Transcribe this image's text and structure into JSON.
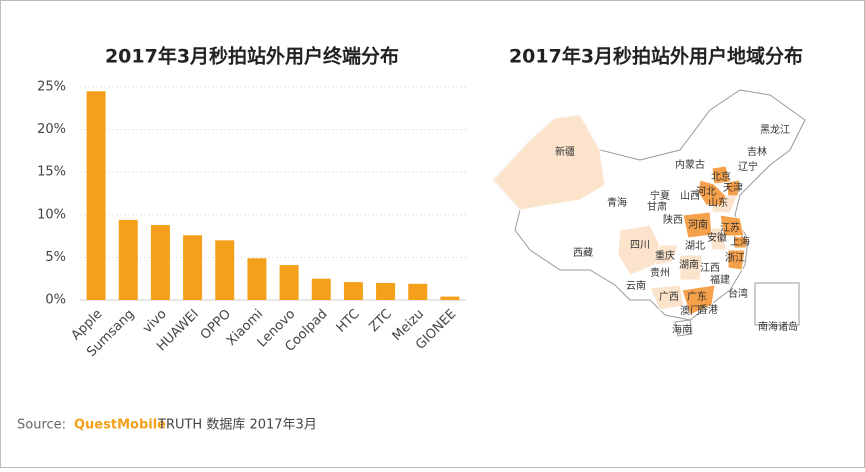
{
  "chart_data": [
    {
      "type": "bar",
      "title": "2017年3月秒拍站外用户终端分布",
      "categories": [
        "Apple",
        "Sumsang",
        "vivo",
        "HUAWEI",
        "OPPO",
        "Xiaomi",
        "Lenovo",
        "Coolpad",
        "HTC",
        "ZTC",
        "Meizu",
        "GIONEE"
      ],
      "values": [
        24.5,
        9.4,
        8.8,
        7.6,
        7.0,
        4.9,
        4.1,
        2.5,
        2.1,
        2.0,
        1.9,
        0.4
      ],
      "color": "#f5a01a",
      "ylim": [
        0,
        25
      ],
      "yticks": [
        {
          "value": 0,
          "label": "0%"
        },
        {
          "value": 5,
          "label": "5%"
        },
        {
          "value": 10,
          "label": "10%"
        },
        {
          "value": 15,
          "label": "15%"
        },
        {
          "value": 20,
          "label": "20%"
        },
        {
          "value": 25,
          "label": "25%"
        }
      ],
      "grid": true
    },
    {
      "type": "map",
      "title": "2017年3月秒拍站外用户地域分布",
      "regions": [
        {
          "name": "新疆",
          "color": "#fbe3cc"
        },
        {
          "name": "西藏",
          "color": "#ffffff"
        },
        {
          "name": "青海",
          "color": "#ffffff"
        },
        {
          "name": "甘肃",
          "color": "#ffffff"
        },
        {
          "name": "内蒙古",
          "color": "#ffffff"
        },
        {
          "name": "黑龙江",
          "color": "#ffffff"
        },
        {
          "name": "吉林",
          "color": "#ffffff"
        },
        {
          "name": "辽宁",
          "color": "#ffffff"
        },
        {
          "name": "北京",
          "color": "#f5a04a"
        },
        {
          "name": "天津",
          "color": "#f5a04a"
        },
        {
          "name": "河北",
          "color": "#f5a04a"
        },
        {
          "name": "宁夏",
          "color": "#ffffff"
        },
        {
          "name": "山西",
          "color": "#ffffff"
        },
        {
          "name": "山东",
          "color": "#fbe3cc"
        },
        {
          "name": "陕西",
          "color": "#ffffff"
        },
        {
          "name": "河南",
          "color": "#f5a04a"
        },
        {
          "name": "江苏",
          "color": "#f5a04a"
        },
        {
          "name": "安徽",
          "color": "#fbe3cc"
        },
        {
          "name": "上海",
          "color": "#f5a04a"
        },
        {
          "name": "四川",
          "color": "#fbe3cc"
        },
        {
          "name": "重庆",
          "color": "#fbe3cc"
        },
        {
          "name": "湖北",
          "color": "#ffffff"
        },
        {
          "name": "浙江",
          "color": "#f5a04a"
        },
        {
          "name": "湖南",
          "color": "#fbe3cc"
        },
        {
          "name": "江西",
          "color": "#ffffff"
        },
        {
          "name": "贵州",
          "color": "#ffffff"
        },
        {
          "name": "福建",
          "color": "#ffffff"
        },
        {
          "name": "云南",
          "color": "#ffffff"
        },
        {
          "name": "广西",
          "color": "#fbe3cc"
        },
        {
          "name": "广东",
          "color": "#f5a04a"
        },
        {
          "name": "台湾",
          "color": "#ffffff"
        },
        {
          "name": "澳门",
          "color": "#ffffff"
        },
        {
          "name": "香港",
          "color": "#ffffff"
        },
        {
          "name": "海南",
          "color": "#ffffff"
        },
        {
          "name": "南海诸岛",
          "color": "#ffffff"
        }
      ]
    }
  ],
  "source": {
    "label": "Source:",
    "brand": "QuestMobile",
    "text": "TRUTH 数据库 2017年3月"
  }
}
